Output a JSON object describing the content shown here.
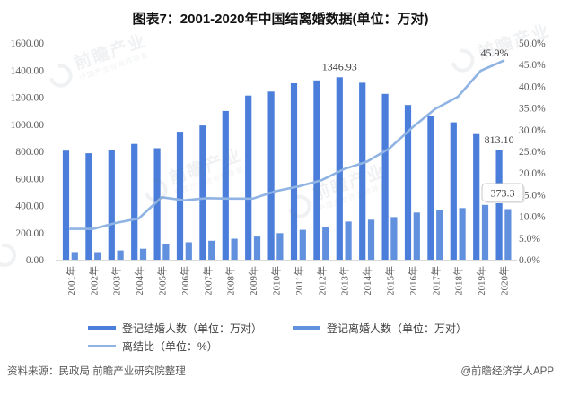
{
  "title": "图表7：2001-2020年中国结离婚数据(单位：万对)",
  "source_note": "资料来源：民政局 前瞻产业研究院整理",
  "credit": "@前瞻经济学人APP",
  "watermark": {
    "text": "前瞻产业",
    "subtext": "中国产业咨询领导者"
  },
  "colors": {
    "marriage": "#4a7eda",
    "divorce": "#6191de",
    "ratio_line": "#8fb3e3",
    "axis_text": "#595959",
    "annotation_text": "#3f3f3f",
    "baseline": "#d9d9d9",
    "tooltip_border": "#c8c8c8",
    "tooltip_bg": "#ffffff"
  },
  "legend": {
    "items": [
      {
        "label": "登记结婚人数（单位：万对）",
        "swatch": "marriage",
        "type": "bar"
      },
      {
        "label": "登记离婚人数（单位：万对）",
        "swatch": "divorce",
        "type": "bar"
      },
      {
        "label": "离结比（单位：%）",
        "swatch": "ratio_line",
        "type": "line"
      }
    ]
  },
  "annotations": {
    "peak_marriage_2013": "1346.93",
    "marriage_2020": "813.10",
    "ratio_2020": "45.9%",
    "tooltip_divorce_2020": "373.3"
  },
  "chart_data": {
    "type": "bar+line combo",
    "title": "图表7：2001-2020年中国结离婚数据(单位：万对)",
    "categories": [
      "2001年",
      "2002年",
      "2003年",
      "2004年",
      "2005年",
      "2006年",
      "2007年",
      "2008年",
      "2009年",
      "2010年",
      "2011年",
      "2012年",
      "2013年",
      "2014年",
      "2015年",
      "2016年",
      "2017年",
      "2018年",
      "2019年",
      "2020年"
    ],
    "series": [
      {
        "name": "登记结婚人数（单位：万对）",
        "type": "bar",
        "axis": "left",
        "values": [
          805.0,
          786.0,
          811.4,
          854.6,
          823.1,
          945.0,
          991.4,
          1098.3,
          1212.2,
          1241.0,
          1302.4,
          1323.6,
          1346.93,
          1306.7,
          1224.7,
          1142.8,
          1063.1,
          1013.9,
          927.3,
          813.1
        ]
      },
      {
        "name": "登记离婚人数（单位：万对）",
        "type": "bar",
        "axis": "left",
        "values": [
          57.0,
          56.0,
          69.0,
          81.0,
          118.5,
          129.1,
          140.4,
          155.3,
          171.3,
          196.1,
          220.7,
          242.3,
          281.5,
          295.7,
          314.9,
          348.6,
          370.4,
          381.2,
          404.7,
          373.3
        ]
      },
      {
        "name": "离结比（单位：%）",
        "type": "line",
        "axis": "right",
        "values": [
          7.1,
          7.1,
          8.5,
          9.5,
          14.4,
          13.7,
          14.2,
          14.1,
          14.1,
          15.8,
          16.9,
          18.3,
          20.9,
          22.6,
          25.7,
          30.5,
          34.8,
          37.6,
          43.6,
          45.9
        ]
      }
    ],
    "left_axis": {
      "min": 0,
      "max": 1600,
      "step": 200,
      "ticks": [
        "0.00",
        "200.00",
        "400.00",
        "600.00",
        "800.00",
        "1000.00",
        "1200.00",
        "1400.00",
        "1600.00"
      ]
    },
    "right_axis": {
      "min": 0,
      "max": 50,
      "step": 5,
      "ticks": [
        "0.0%",
        "5.0%",
        "10.0%",
        "15.0%",
        "20.0%",
        "25.0%",
        "30.0%",
        "35.0%",
        "40.0%",
        "45.0%",
        "50.0%"
      ]
    },
    "grid": false,
    "legend_position": "bottom"
  }
}
